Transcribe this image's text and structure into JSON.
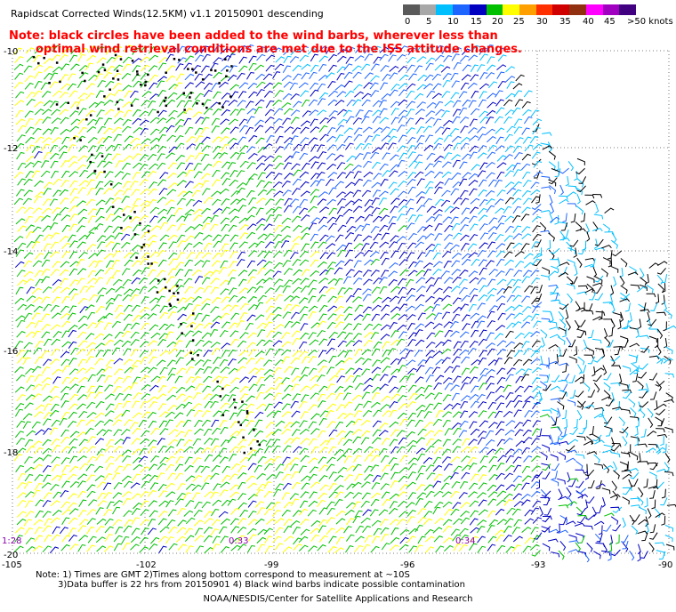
{
  "title": "Rapidscat Corrected Winds(12.5KM) v1.1 20150901 descending",
  "note": {
    "line1": "Note: black circles have been added to the wind barbs, wherever less than",
    "line2": "optimal wind retrieval conditions are met due to the ISS attitude changes."
  },
  "legend": {
    "unit": ">50 knots",
    "labels": [
      "0",
      "5",
      "10",
      "15",
      "20",
      "25",
      "30",
      "35",
      "40",
      "45"
    ],
    "colors": [
      "#5a5a5a",
      "#a8a8a8",
      "#00bfff",
      "#1e64ff",
      "#0000c0",
      "#00c000",
      "#ffff00",
      "#ffa000",
      "#ff3000",
      "#d00000",
      "#903010",
      "#ff00ff",
      "#a000c0",
      "#400080"
    ]
  },
  "axes": {
    "lat_labels": [
      "-10",
      "-12",
      "-14",
      "-16",
      "-18",
      "-20"
    ],
    "lon_labels": [
      "-105",
      "-102",
      "-99",
      "-96",
      "-93",
      "-90"
    ]
  },
  "pass_times": [
    "1:28",
    "0:33",
    "0:34"
  ],
  "footer": {
    "line1": "Note: 1) Times are GMT 2)Times along bottom correspond to measurement at ~10S",
    "line2": "3)Data buffer is 22 hrs from 20150901 4) Black wind barbs indicate possible contamination",
    "credit": "NOAA/NESDIS/Center for Satellite Applications and Research"
  }
}
